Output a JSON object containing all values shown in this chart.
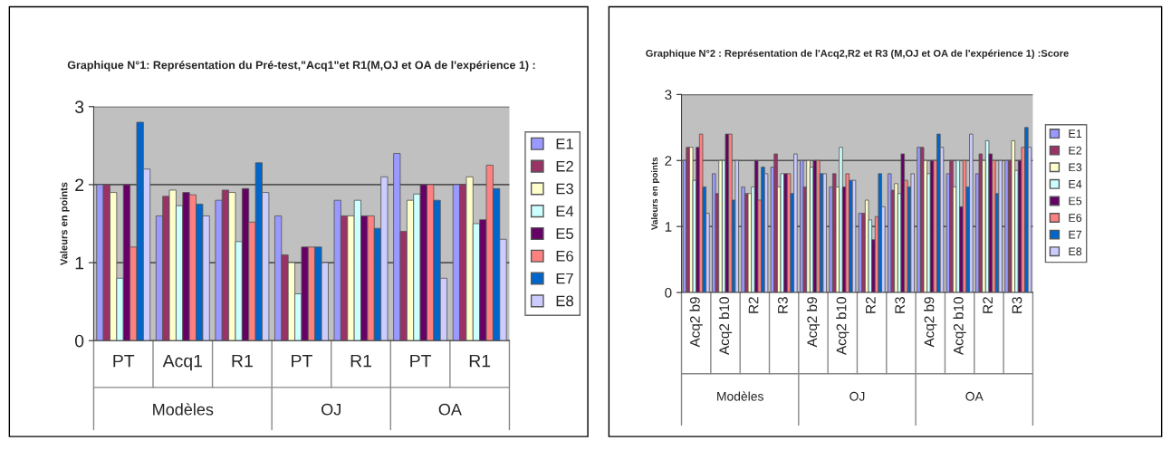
{
  "chart_data": [
    {
      "type": "bar",
      "title": "Graphique N°1: Représentation du Pré-test,\"Acq1\"et R1(M,OJ et OA de l'expérience 1) :",
      "ylabel": "Valeurs en points",
      "categories": [
        "PT",
        "Acq1",
        "R1",
        "PT",
        "R1",
        "PT",
        "R1"
      ],
      "annotations": [
        "Modèles",
        "OJ",
        "OA"
      ],
      "ylim": [
        0,
        3
      ],
      "yticks": [
        0,
        1,
        2,
        3
      ],
      "grid": "y",
      "legend": "right",
      "series": [
        {
          "name": "E1",
          "color": "#9999ff",
          "values": [
            2.0,
            1.6,
            1.8,
            1.6,
            1.8,
            2.4,
            2.0
          ]
        },
        {
          "name": "E2",
          "color": "#993366",
          "values": [
            2.0,
            1.85,
            1.93,
            1.1,
            1.6,
            1.4,
            2.0
          ]
        },
        {
          "name": "E3",
          "color": "#ffffcc",
          "values": [
            1.9,
            1.93,
            1.9,
            1.0,
            1.6,
            1.8,
            2.1
          ]
        },
        {
          "name": "E4",
          "color": "#ccffff",
          "values": [
            0.8,
            1.73,
            1.27,
            0.6,
            1.8,
            1.88,
            1.5
          ]
        },
        {
          "name": "E5",
          "color": "#660066",
          "values": [
            2.0,
            1.9,
            1.95,
            1.2,
            1.6,
            2.0,
            1.55
          ]
        },
        {
          "name": "E6",
          "color": "#ff8080",
          "values": [
            1.2,
            1.87,
            1.52,
            1.2,
            1.6,
            2.0,
            2.25
          ]
        },
        {
          "name": "E7",
          "color": "#0066cc",
          "values": [
            2.8,
            1.75,
            2.28,
            1.2,
            1.44,
            1.8,
            1.95
          ]
        },
        {
          "name": "E8",
          "color": "#ccccff",
          "values": [
            2.2,
            1.6,
            1.9,
            1.0,
            2.1,
            0.8,
            1.3
          ]
        }
      ]
    },
    {
      "type": "bar",
      "title": "Graphique N°2 : Représentation de l'Acq2,R2 et R3 (M,OJ et OA de l'expérience 1) :Score",
      "ylabel": "Valeurs en points",
      "categories": [
        "Acq2 b9",
        "Acq2 b10",
        "R2",
        "R3",
        "Acq2 b9",
        "Acq2 b10",
        "R2",
        "R3",
        "Acq2 b9",
        "Acq2 b10",
        "R2",
        "R3"
      ],
      "annotations": [
        "Modèles",
        "OJ",
        "OA"
      ],
      "ylim": [
        0,
        3
      ],
      "yticks": [
        0,
        1,
        2,
        3
      ],
      "grid": "y",
      "legend": "right",
      "series": [
        {
          "name": "E1",
          "color": "#9999ff",
          "values": [
            2.0,
            1.8,
            1.6,
            1.9,
            2.0,
            1.6,
            1.2,
            1.8,
            2.2,
            1.8,
            1.8,
            2.0
          ]
        },
        {
          "name": "E2",
          "color": "#993366",
          "values": [
            2.2,
            1.5,
            1.5,
            2.1,
            1.6,
            1.8,
            1.2,
            1.55,
            2.2,
            2.0,
            2.1,
            2.0
          ]
        },
        {
          "name": "E3",
          "color": "#ffffcc",
          "values": [
            2.2,
            2.0,
            1.5,
            1.6,
            2.0,
            1.6,
            1.4,
            1.65,
            2.0,
            1.6,
            2.0,
            2.3
          ]
        },
        {
          "name": "E4",
          "color": "#ccffff",
          "values": [
            1.7,
            2.0,
            1.6,
            1.8,
            1.9,
            2.2,
            1.1,
            1.5,
            1.8,
            2.0,
            2.3,
            1.85
          ]
        },
        {
          "name": "E5",
          "color": "#660066",
          "values": [
            2.2,
            2.4,
            2.0,
            1.8,
            2.0,
            1.6,
            0.8,
            2.1,
            2.0,
            1.3,
            2.1,
            2.0
          ]
        },
        {
          "name": "E6",
          "color": "#ff8080",
          "values": [
            2.4,
            2.4,
            1.4,
            1.8,
            2.0,
            1.8,
            1.15,
            1.7,
            2.0,
            2.0,
            2.0,
            2.2
          ]
        },
        {
          "name": "E7",
          "color": "#0066cc",
          "values": [
            1.6,
            1.4,
            1.9,
            1.5,
            1.8,
            1.7,
            1.8,
            1.6,
            2.4,
            1.6,
            1.5,
            2.5
          ]
        },
        {
          "name": "E8",
          "color": "#ccccff",
          "values": [
            1.2,
            2.0,
            1.8,
            2.1,
            1.8,
            1.7,
            1.3,
            1.8,
            2.2,
            2.4,
            2.0,
            2.2
          ]
        }
      ]
    }
  ]
}
